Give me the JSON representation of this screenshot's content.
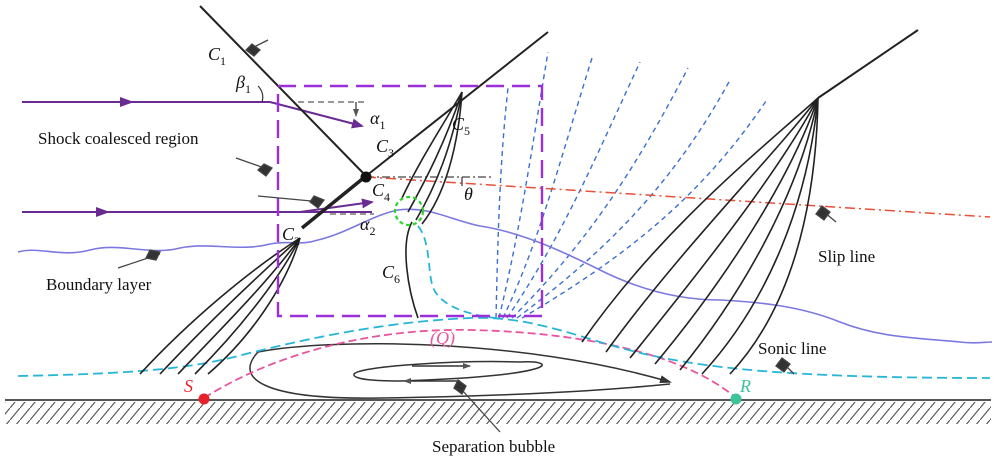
{
  "labels": {
    "c1": "C",
    "c1_sub": "1",
    "c2": "C",
    "c2_sub": "2",
    "c3": "C",
    "c3_sub": "3",
    "c4": "C",
    "c4_sub": "4",
    "c5": "C",
    "c5_sub": "5",
    "c6": "C",
    "c6_sub": "6",
    "beta1": "β",
    "beta1_sub": "1",
    "alpha1": "α",
    "alpha1_sub": "1",
    "alpha2": "α",
    "alpha2_sub": "2",
    "theta": "θ",
    "q": "(Q)",
    "s": "S",
    "r": "R",
    "shock_coalesced_region": "Shock coalesced region",
    "boundary_layer": "Boundary layer",
    "slip_line": "Slip line",
    "sonic_line": "Sonic line",
    "separation_bubble": "Separation bubble"
  },
  "colors": {
    "incoming_flow": "#6a2c91",
    "coalesced_box": "#9b30d9",
    "expansion_fan": "#3a6fd0",
    "slip_line": "#e8503a",
    "boundary_layer": "#7b79e0",
    "sonic_line": "#27b6d8",
    "separation_line": "#e8559e",
    "point_s": "#e8202a",
    "point_r": "#3cc39a",
    "triple_point_ring": "#2fd12f",
    "wall": "#555555"
  }
}
